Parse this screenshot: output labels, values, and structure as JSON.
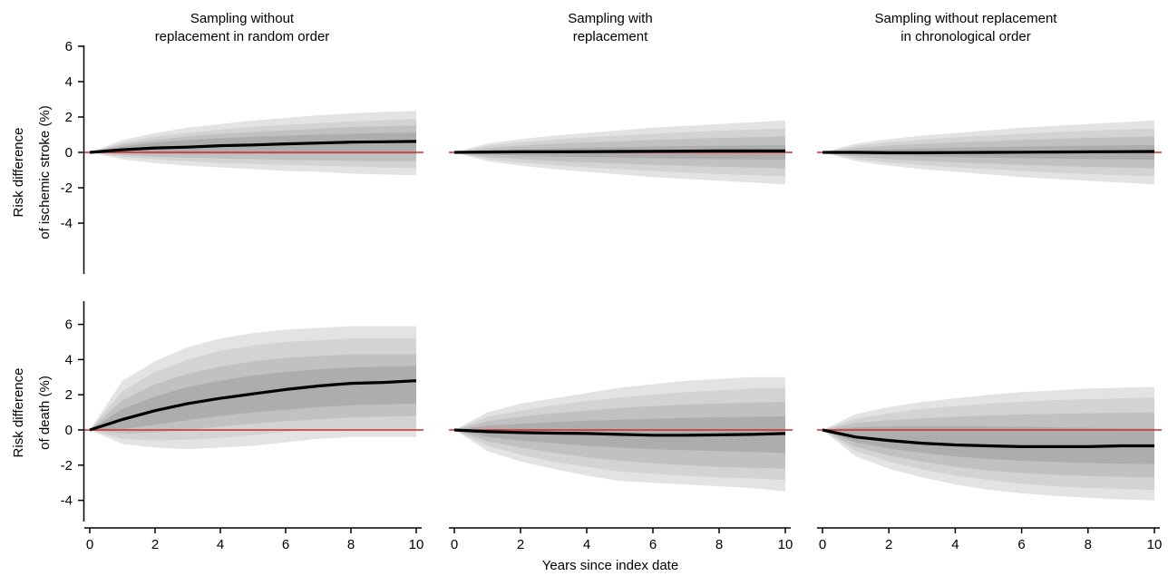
{
  "figure": {
    "column_titles": [
      [
        "Sampling without",
        "replacement in random order"
      ],
      [
        "Sampling with",
        "replacement"
      ],
      [
        "Sampling without replacement",
        "in chronological order"
      ]
    ],
    "row_labels": [
      [
        "Risk difference",
        "of ischemic stroke (%)"
      ],
      [
        "Risk difference",
        "of death (%)"
      ]
    ],
    "xlabel": "Years since index date",
    "colors": {
      "band_outer": "#e3e3e3",
      "band_2": "#d3d3d3",
      "band_3": "#c1c1c1",
      "band_inner": "#adadad",
      "estimate_line": "#000000",
      "reference_line": "#d22b2b"
    }
  },
  "chart_data": [
    {
      "type": "area",
      "title": "Sampling without replacement in random order",
      "ylabel": "Risk difference of ischemic stroke (%)",
      "xlabel": "",
      "xlim": [
        0,
        10
      ],
      "ylim": [
        -5.5,
        7.5
      ],
      "xticks": [
        0,
        2,
        4,
        6,
        8,
        10
      ],
      "yticks": [
        -4,
        -2,
        0,
        2,
        4,
        6
      ],
      "reference_y": 0,
      "x": [
        0,
        1,
        2,
        3,
        4,
        5,
        6,
        7,
        8,
        9,
        10
      ],
      "series": [
        {
          "kind": "line",
          "values": [
            0,
            0.15,
            0.25,
            0.3,
            0.38,
            0.42,
            0.48,
            0.53,
            0.58,
            0.6,
            0.62
          ]
        },
        {
          "kind": "band",
          "lower": [
            0,
            -0.4,
            -0.6,
            -0.75,
            -0.85,
            -0.95,
            -1.05,
            -1.1,
            -1.2,
            -1.25,
            -1.3
          ],
          "upper": [
            0,
            0.7,
            1.1,
            1.4,
            1.6,
            1.8,
            1.95,
            2.1,
            2.2,
            2.3,
            2.35
          ]
        },
        {
          "kind": "band",
          "lower": [
            0,
            -0.25,
            -0.4,
            -0.5,
            -0.6,
            -0.65,
            -0.7,
            -0.75,
            -0.8,
            -0.85,
            -0.88
          ],
          "upper": [
            0,
            0.55,
            0.9,
            1.1,
            1.3,
            1.45,
            1.55,
            1.65,
            1.75,
            1.82,
            1.88
          ]
        },
        {
          "kind": "band",
          "lower": [
            0,
            -0.15,
            -0.25,
            -0.3,
            -0.35,
            -0.38,
            -0.42,
            -0.45,
            -0.48,
            -0.5,
            -0.52
          ],
          "upper": [
            0,
            0.45,
            0.7,
            0.9,
            1.05,
            1.15,
            1.25,
            1.35,
            1.42,
            1.48,
            1.52
          ]
        },
        {
          "kind": "band",
          "lower": [
            0,
            -0.05,
            -0.08,
            -0.1,
            -0.1,
            -0.1,
            -0.1,
            -0.1,
            -0.1,
            -0.1,
            -0.1
          ],
          "upper": [
            0,
            0.35,
            0.55,
            0.7,
            0.8,
            0.88,
            0.95,
            1.0,
            1.05,
            1.1,
            1.12
          ]
        }
      ]
    },
    {
      "type": "area",
      "title": "Sampling with replacement",
      "ylabel": "Risk difference of ischemic stroke (%)",
      "xlabel": "",
      "xlim": [
        0,
        10
      ],
      "ylim": [
        -5.5,
        7.5
      ],
      "xticks": [
        0,
        2,
        4,
        6,
        8,
        10
      ],
      "yticks": [
        -4,
        -2,
        0,
        2,
        4,
        6
      ],
      "reference_y": 0,
      "x": [
        0,
        1,
        2,
        3,
        4,
        5,
        6,
        7,
        8,
        9,
        10
      ],
      "series": [
        {
          "kind": "line",
          "values": [
            0,
            0.02,
            0.03,
            0.03,
            0.04,
            0.05,
            0.06,
            0.07,
            0.08,
            0.08,
            0.08
          ]
        },
        {
          "kind": "band",
          "lower": [
            0,
            -0.5,
            -0.75,
            -0.95,
            -1.1,
            -1.25,
            -1.4,
            -1.5,
            -1.6,
            -1.7,
            -1.8
          ],
          "upper": [
            0,
            0.5,
            0.75,
            0.95,
            1.1,
            1.25,
            1.4,
            1.5,
            1.6,
            1.7,
            1.8
          ]
        },
        {
          "kind": "band",
          "lower": [
            0,
            -0.38,
            -0.58,
            -0.72,
            -0.85,
            -0.95,
            -1.05,
            -1.15,
            -1.22,
            -1.3,
            -1.35
          ],
          "upper": [
            0,
            0.38,
            0.58,
            0.72,
            0.85,
            0.95,
            1.05,
            1.15,
            1.22,
            1.3,
            1.35
          ]
        },
        {
          "kind": "band",
          "lower": [
            0,
            -0.25,
            -0.38,
            -0.48,
            -0.56,
            -0.63,
            -0.7,
            -0.76,
            -0.82,
            -0.86,
            -0.9
          ],
          "upper": [
            0,
            0.25,
            0.38,
            0.48,
            0.56,
            0.63,
            0.7,
            0.76,
            0.82,
            0.86,
            0.9
          ]
        },
        {
          "kind": "band",
          "lower": [
            0,
            -0.12,
            -0.18,
            -0.23,
            -0.27,
            -0.3,
            -0.33,
            -0.36,
            -0.38,
            -0.4,
            -0.42
          ],
          "upper": [
            0,
            0.12,
            0.18,
            0.23,
            0.27,
            0.3,
            0.33,
            0.36,
            0.38,
            0.4,
            0.42
          ]
        }
      ]
    },
    {
      "type": "area",
      "title": "Sampling without replacement in chronological order",
      "ylabel": "Risk difference of ischemic stroke (%)",
      "xlabel": "",
      "xlim": [
        0,
        10
      ],
      "ylim": [
        -5.5,
        7.5
      ],
      "xticks": [
        0,
        2,
        4,
        6,
        8,
        10
      ],
      "yticks": [
        -4,
        -2,
        0,
        2,
        4,
        6
      ],
      "reference_y": 0,
      "x": [
        0,
        1,
        2,
        3,
        4,
        5,
        6,
        7,
        8,
        9,
        10
      ],
      "series": [
        {
          "kind": "line",
          "values": [
            0,
            0.0,
            -0.02,
            -0.02,
            -0.01,
            0.0,
            0.01,
            0.02,
            0.03,
            0.04,
            0.05
          ]
        },
        {
          "kind": "band",
          "lower": [
            0,
            -0.5,
            -0.75,
            -0.95,
            -1.1,
            -1.25,
            -1.4,
            -1.5,
            -1.6,
            -1.7,
            -1.8
          ],
          "upper": [
            0,
            0.5,
            0.75,
            0.95,
            1.1,
            1.25,
            1.4,
            1.5,
            1.6,
            1.7,
            1.8
          ]
        },
        {
          "kind": "band",
          "lower": [
            0,
            -0.38,
            -0.58,
            -0.72,
            -0.85,
            -0.95,
            -1.05,
            -1.15,
            -1.22,
            -1.3,
            -1.35
          ],
          "upper": [
            0,
            0.38,
            0.58,
            0.72,
            0.85,
            0.95,
            1.05,
            1.15,
            1.22,
            1.3,
            1.35
          ]
        },
        {
          "kind": "band",
          "lower": [
            0,
            -0.25,
            -0.38,
            -0.48,
            -0.56,
            -0.63,
            -0.7,
            -0.76,
            -0.82,
            -0.86,
            -0.9
          ],
          "upper": [
            0,
            0.25,
            0.38,
            0.48,
            0.56,
            0.63,
            0.7,
            0.76,
            0.82,
            0.86,
            0.9
          ]
        },
        {
          "kind": "band",
          "lower": [
            0,
            -0.12,
            -0.18,
            -0.23,
            -0.27,
            -0.3,
            -0.33,
            -0.36,
            -0.38,
            -0.4,
            -0.42
          ],
          "upper": [
            0,
            0.12,
            0.18,
            0.23,
            0.27,
            0.3,
            0.33,
            0.36,
            0.38,
            0.4,
            0.42
          ]
        }
      ]
    },
    {
      "type": "area",
      "title": "Sampling without replacement in random order",
      "ylabel": "Risk difference of death (%)",
      "xlabel": "Years since index date",
      "xlim": [
        0,
        10
      ],
      "ylim": [
        -5.5,
        7.5
      ],
      "xticks": [
        0,
        2,
        4,
        6,
        8,
        10
      ],
      "yticks": [
        -4,
        -2,
        0,
        2,
        4,
        6
      ],
      "reference_y": 0,
      "x": [
        0,
        1,
        2,
        3,
        4,
        5,
        6,
        7,
        8,
        9,
        10
      ],
      "series": [
        {
          "kind": "line",
          "values": [
            0,
            0.6,
            1.1,
            1.5,
            1.8,
            2.05,
            2.3,
            2.5,
            2.65,
            2.7,
            2.8
          ]
        },
        {
          "kind": "band",
          "lower": [
            0,
            -0.8,
            -1.0,
            -1.1,
            -1.0,
            -0.9,
            -0.7,
            -0.5,
            -0.4,
            -0.4,
            -0.4
          ],
          "upper": [
            0,
            2.8,
            3.9,
            4.7,
            5.2,
            5.5,
            5.7,
            5.8,
            5.9,
            5.9,
            5.9
          ]
        },
        {
          "kind": "band",
          "lower": [
            0,
            -0.5,
            -0.6,
            -0.55,
            -0.45,
            -0.3,
            -0.1,
            0.0,
            0.05,
            0.05,
            0.05
          ],
          "upper": [
            0,
            2.2,
            3.3,
            4.0,
            4.5,
            4.8,
            5.0,
            5.1,
            5.2,
            5.2,
            5.2
          ]
        },
        {
          "kind": "band",
          "lower": [
            0,
            -0.2,
            -0.15,
            0.0,
            0.2,
            0.35,
            0.5,
            0.6,
            0.7,
            0.75,
            0.8
          ],
          "upper": [
            0,
            1.7,
            2.6,
            3.2,
            3.6,
            3.9,
            4.1,
            4.2,
            4.3,
            4.3,
            4.3
          ]
        },
        {
          "kind": "band",
          "lower": [
            0,
            0.05,
            0.3,
            0.55,
            0.8,
            1.0,
            1.15,
            1.3,
            1.4,
            1.45,
            1.5
          ],
          "upper": [
            0,
            1.2,
            1.9,
            2.45,
            2.8,
            3.1,
            3.3,
            3.45,
            3.55,
            3.6,
            3.65
          ]
        }
      ]
    },
    {
      "type": "area",
      "title": "Sampling with replacement",
      "ylabel": "Risk difference of death (%)",
      "xlabel": "Years since index date",
      "xlim": [
        0,
        10
      ],
      "ylim": [
        -5.5,
        7.5
      ],
      "xticks": [
        0,
        2,
        4,
        6,
        8,
        10
      ],
      "yticks": [
        -4,
        -2,
        0,
        2,
        4,
        6
      ],
      "reference_y": 0,
      "x": [
        0,
        1,
        2,
        3,
        4,
        5,
        6,
        7,
        8,
        9,
        10
      ],
      "series": [
        {
          "kind": "line",
          "values": [
            0,
            -0.1,
            -0.15,
            -0.18,
            -0.2,
            -0.25,
            -0.3,
            -0.3,
            -0.28,
            -0.25,
            -0.2
          ]
        },
        {
          "kind": "band",
          "lower": [
            0,
            -1.2,
            -1.8,
            -2.2,
            -2.6,
            -2.9,
            -3.0,
            -3.1,
            -3.2,
            -3.3,
            -3.5
          ],
          "upper": [
            0,
            1.0,
            1.5,
            1.8,
            2.1,
            2.4,
            2.6,
            2.8,
            2.9,
            3.0,
            3.0
          ]
        },
        {
          "kind": "band",
          "lower": [
            0,
            -0.9,
            -1.4,
            -1.8,
            -2.1,
            -2.35,
            -2.5,
            -2.6,
            -2.7,
            -2.75,
            -2.85
          ],
          "upper": [
            0,
            0.75,
            1.1,
            1.4,
            1.65,
            1.85,
            2.0,
            2.15,
            2.25,
            2.35,
            2.4
          ]
        },
        {
          "kind": "band",
          "lower": [
            0,
            -0.65,
            -1.0,
            -1.3,
            -1.55,
            -1.75,
            -1.9,
            -2.0,
            -2.1,
            -2.15,
            -2.2
          ],
          "upper": [
            0,
            0.5,
            0.75,
            0.95,
            1.1,
            1.25,
            1.35,
            1.45,
            1.5,
            1.55,
            1.6
          ]
        },
        {
          "kind": "band",
          "lower": [
            0,
            -0.4,
            -0.6,
            -0.75,
            -0.9,
            -1.0,
            -1.1,
            -1.15,
            -1.2,
            -1.25,
            -1.3
          ],
          "upper": [
            0,
            0.25,
            0.35,
            0.45,
            0.52,
            0.58,
            0.63,
            0.68,
            0.72,
            0.75,
            0.78
          ]
        }
      ]
    },
    {
      "type": "area",
      "title": "Sampling without replacement in chronological order",
      "ylabel": "Risk difference of death (%)",
      "xlabel": "Years since index date",
      "xlim": [
        0,
        10
      ],
      "ylim": [
        -5.5,
        7.5
      ],
      "xticks": [
        0,
        2,
        4,
        6,
        8,
        10
      ],
      "yticks": [
        -4,
        -2,
        0,
        2,
        4,
        6
      ],
      "reference_y": 0,
      "x": [
        0,
        1,
        2,
        3,
        4,
        5,
        6,
        7,
        8,
        9,
        10
      ],
      "series": [
        {
          "kind": "line",
          "values": [
            0,
            -0.4,
            -0.6,
            -0.75,
            -0.85,
            -0.9,
            -0.95,
            -0.95,
            -0.95,
            -0.9,
            -0.9
          ]
        },
        {
          "kind": "band",
          "lower": [
            0,
            -1.5,
            -2.2,
            -2.7,
            -3.1,
            -3.4,
            -3.6,
            -3.75,
            -3.85,
            -3.95,
            -4.0
          ],
          "upper": [
            0,
            0.9,
            1.3,
            1.6,
            1.8,
            2.0,
            2.15,
            2.25,
            2.35,
            2.4,
            2.45
          ]
        },
        {
          "kind": "band",
          "lower": [
            0,
            -1.2,
            -1.8,
            -2.25,
            -2.6,
            -2.85,
            -3.05,
            -3.2,
            -3.3,
            -3.35,
            -3.4
          ],
          "upper": [
            0,
            0.65,
            0.95,
            1.2,
            1.35,
            1.5,
            1.6,
            1.7,
            1.75,
            1.8,
            1.85
          ]
        },
        {
          "kind": "band",
          "lower": [
            0,
            -0.95,
            -1.45,
            -1.8,
            -2.1,
            -2.3,
            -2.45,
            -2.55,
            -2.62,
            -2.66,
            -2.7
          ],
          "upper": [
            0,
            0.4,
            0.55,
            0.65,
            0.75,
            0.82,
            0.88,
            0.92,
            0.95,
            0.98,
            1.0
          ]
        },
        {
          "kind": "band",
          "lower": [
            0,
            -0.7,
            -1.05,
            -1.3,
            -1.5,
            -1.65,
            -1.75,
            -1.82,
            -1.88,
            -1.92,
            -1.95
          ],
          "upper": [
            0,
            0.15,
            0.2,
            0.22,
            0.22,
            0.2,
            0.18,
            0.15,
            0.12,
            0.1,
            0.1
          ]
        }
      ]
    }
  ]
}
